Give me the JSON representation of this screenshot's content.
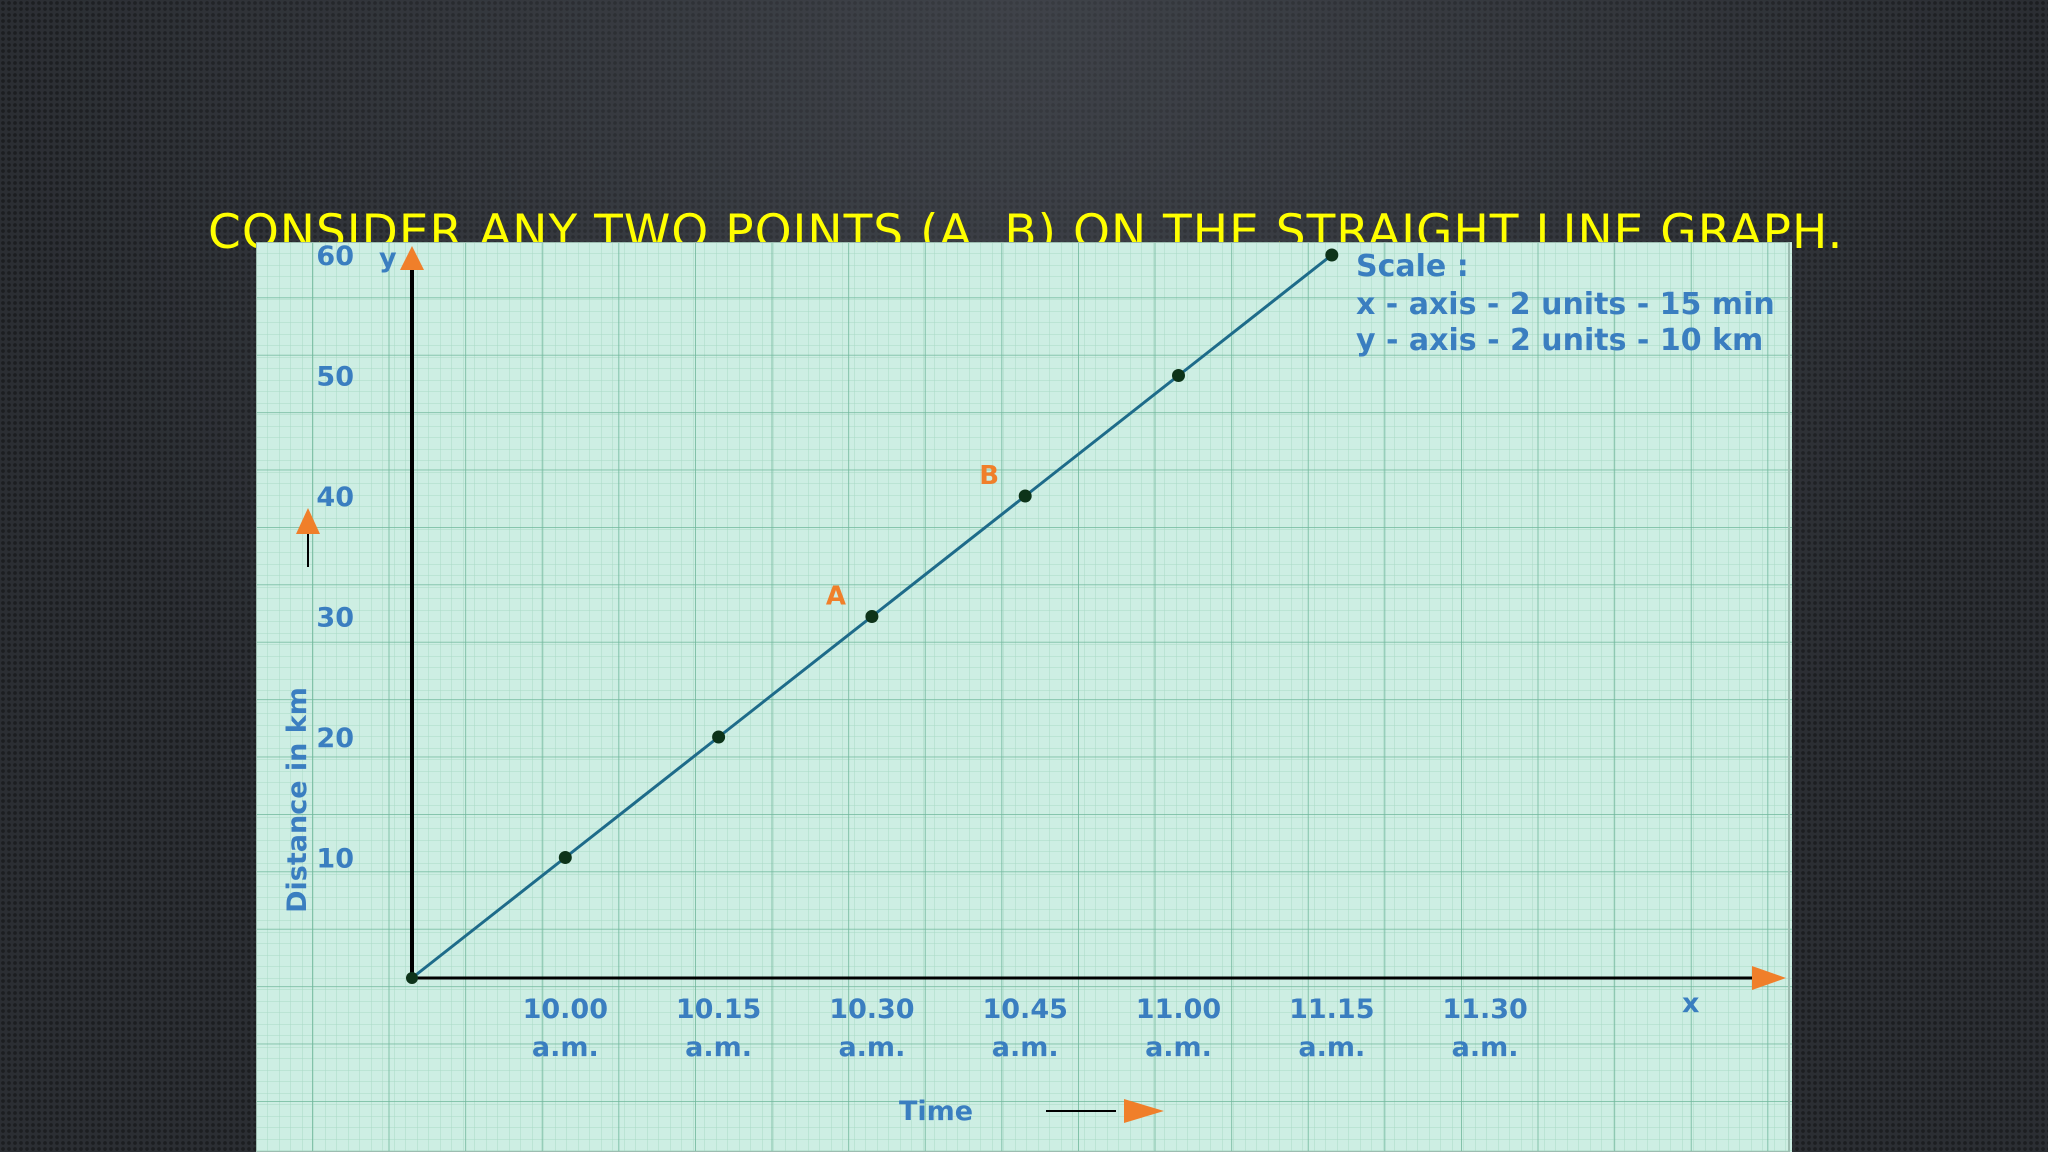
{
  "slide": {
    "title": "Consider any two points (A, B) on the straight line graph."
  },
  "colors": {
    "title": "#ffff00",
    "paper": "#cdeee3",
    "grid_minor": "#a9d9c6",
    "grid_major": "#6fb79b",
    "line": "#1e6b8a",
    "label_blue": "#3a7ec0",
    "arrow_orange": "#f07f2a",
    "axis": "#000000",
    "point": "#0d3319"
  },
  "chart_data": {
    "type": "line",
    "x": [
      "10.00 a.m.",
      "10.15 a.m.",
      "10.30 a.m.",
      "10.45 a.m.",
      "11.00 a.m.",
      "11.15 a.m."
    ],
    "values": [
      10,
      20,
      30,
      40,
      50,
      60
    ],
    "origin_value": 0,
    "x_tick_labels": [
      {
        "l1": "10.00",
        "l2": "a.m."
      },
      {
        "l1": "10.15",
        "l2": "a.m."
      },
      {
        "l1": "10.30",
        "l2": "a.m."
      },
      {
        "l1": "10.45",
        "l2": "a.m."
      },
      {
        "l1": "11.00",
        "l2": "a.m."
      },
      {
        "l1": "11.15",
        "l2": "a.m."
      },
      {
        "l1": "11.30",
        "l2": "a.m."
      }
    ],
    "y_ticks": [
      "10",
      "20",
      "30",
      "40",
      "50",
      "60"
    ],
    "ylim": [
      0,
      60
    ],
    "xlabel": "Time",
    "ylabel": "Distance in km",
    "x_axis_letter": "x",
    "y_axis_letter": "y",
    "grid": true,
    "annotations": [
      {
        "label": "A",
        "x": "10.30 a.m.",
        "y": 30
      },
      {
        "label": "B",
        "x": "10.45 a.m.",
        "y": 40
      }
    ],
    "scale_note": {
      "heading": "Scale :",
      "line1": "x - axis - 2 units - 15 min",
      "line2": "y - axis - 2 units - 10 km"
    }
  }
}
